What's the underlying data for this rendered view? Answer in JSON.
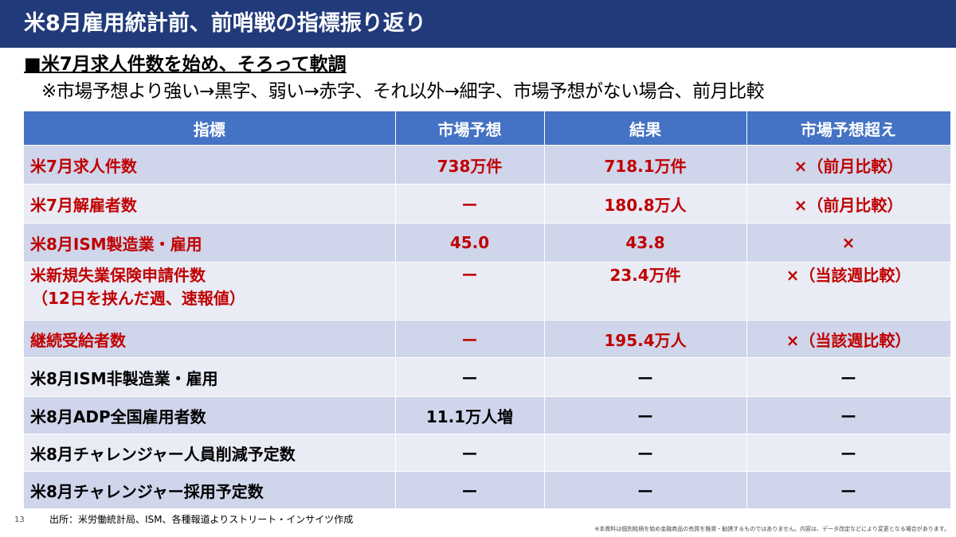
{
  "slide": {
    "title": "米8月雇用統計前、前哨戦の指標振り返り",
    "subtitle": "■米7月求人件数を始め、そろって軟調",
    "note": "※市場予想より強い→黒字、弱い→赤字、それ以外→細字、市場予想がない場合、前月比較",
    "page_number": "13",
    "source": "出所：米労働統計局、ISM、各種報道よりストリート・インサイツ作成",
    "disclaimer": "※本資料は個別銘柄を始め金融商品の売買を推奨・勧誘するものではありません。内容は、データ改定などにより変更となる場合があります。"
  },
  "colors": {
    "title_bg": "#213a7a",
    "header_bg": "#4472c4",
    "row_odd": "#cfd5ea",
    "row_even": "#e9ebf5",
    "weak_red": "#c00000"
  },
  "table": {
    "headers": [
      "指標",
      "市場予想",
      "結果",
      "市場予想超え"
    ],
    "rows": [
      {
        "indicator": "米7月求人件数",
        "indicator2": "",
        "forecast": "738万件",
        "result": "718.1万件",
        "beat": "×（前月比較）",
        "tone": "red"
      },
      {
        "indicator": "米7月解雇者数",
        "indicator2": "",
        "forecast": "ー",
        "result": "180.8万人",
        "beat": "×（前月比較）",
        "tone": "red"
      },
      {
        "indicator": "米8月ISM製造業・雇用",
        "indicator2": "",
        "forecast": "45.0",
        "result": "43.8",
        "beat": "×",
        "tone": "red"
      },
      {
        "indicator": "米新規失業保険申請件数",
        "indicator2": "（12日を挟んだ週、速報値）",
        "forecast": "ー",
        "result": "23.4万件",
        "beat": "×（当該週比較）",
        "tone": "red"
      },
      {
        "indicator": "継続受給者数",
        "indicator2": "",
        "forecast": "ー",
        "result": "195.4万人",
        "beat": "×（当該週比較）",
        "tone": "red"
      },
      {
        "indicator": "米8月ISM非製造業・雇用",
        "indicator2": "",
        "forecast": "ー",
        "result": "ー",
        "beat": "ー",
        "tone": "black"
      },
      {
        "indicator": "米8月ADP全国雇用者数",
        "indicator2": "",
        "forecast": "11.1万人増",
        "result": "ー",
        "beat": "ー",
        "tone": "black"
      },
      {
        "indicator": "米8月チャレンジャー人員削減予定数",
        "indicator2": "",
        "forecast": "ー",
        "result": "ー",
        "beat": "ー",
        "tone": "black"
      },
      {
        "indicator": "米8月チャレンジャー採用予定数",
        "indicator2": "",
        "forecast": "ー",
        "result": "ー",
        "beat": "ー",
        "tone": "black"
      }
    ]
  }
}
